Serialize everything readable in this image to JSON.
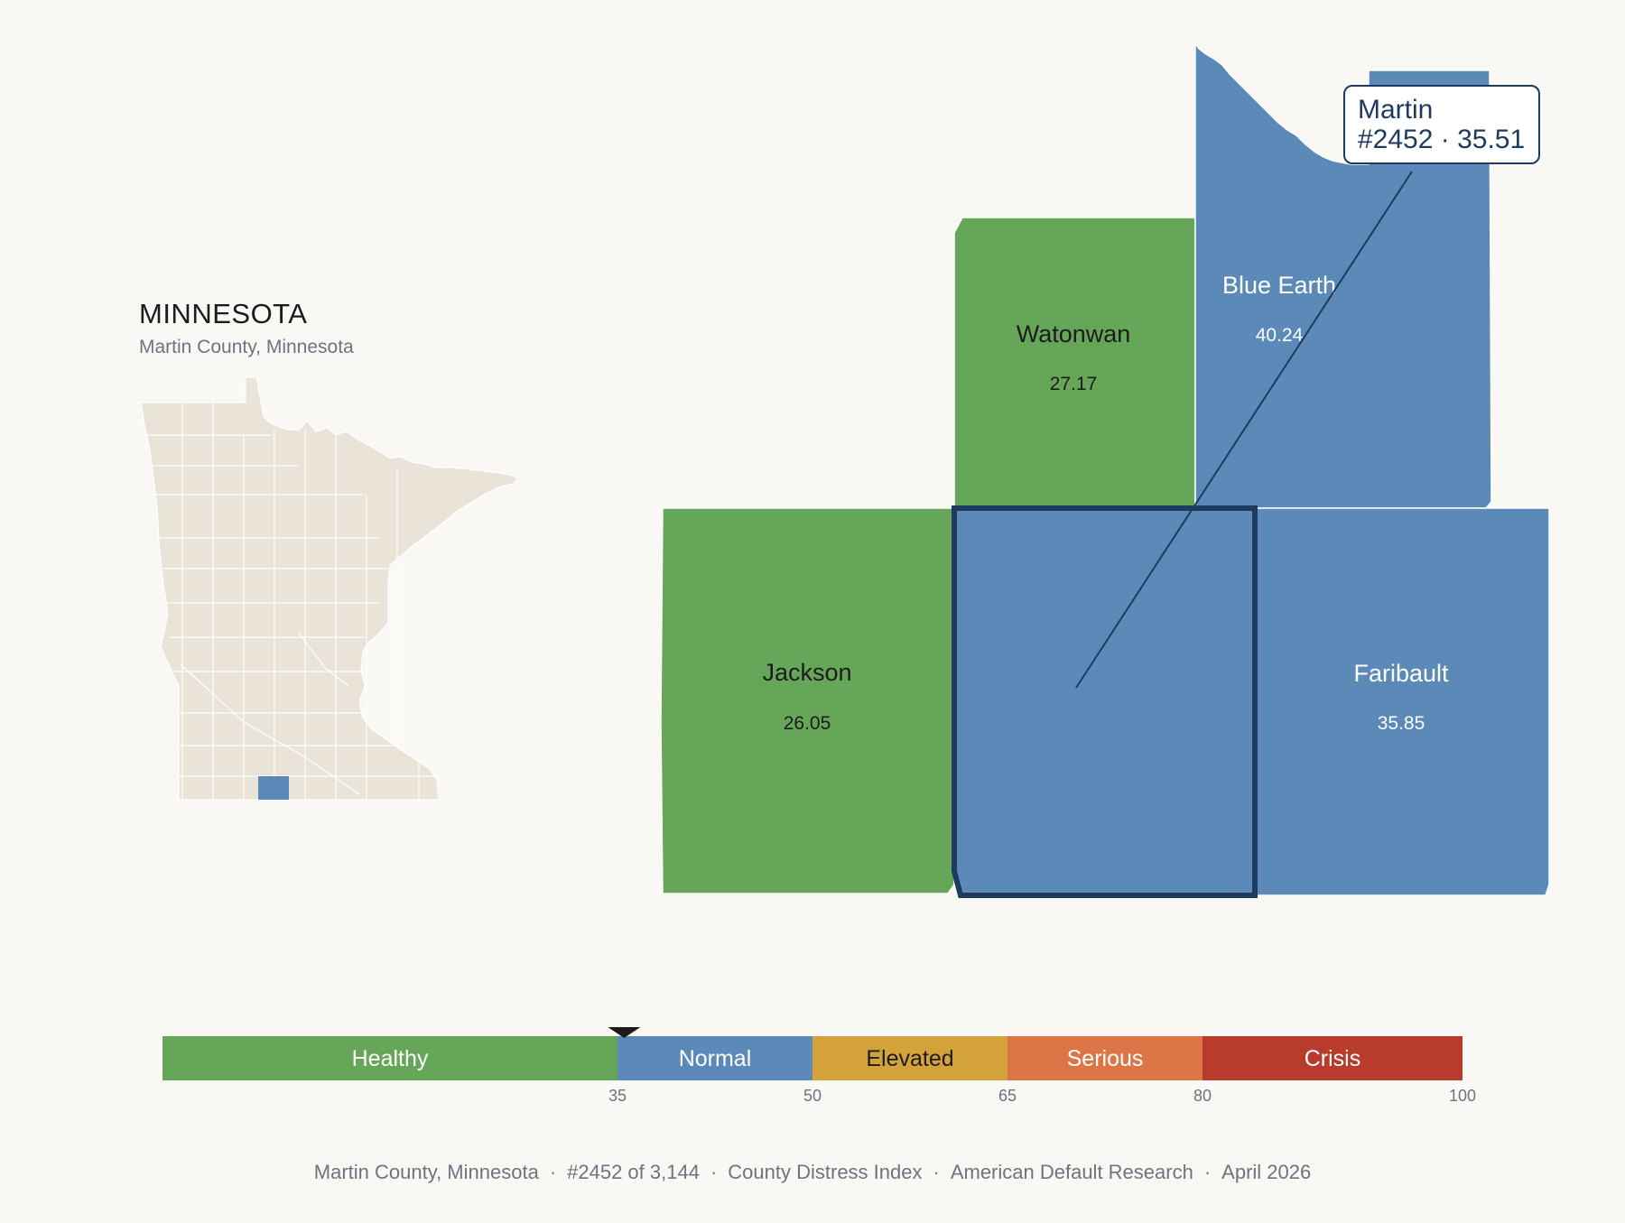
{
  "inset": {
    "state_title": "MINNESOTA",
    "subtitle": "Martin County, Minnesota"
  },
  "colors": {
    "background": "#f9f8f5",
    "state_fill": "#e9e3d8",
    "highlight": "#5b89b8",
    "healthy": "#66a659",
    "normal": "#5b89b8",
    "elevated": "#d4a23a",
    "serious": "#dd7647",
    "crisis": "#b83b2c",
    "outline": "#1e3a5f"
  },
  "counties": [
    {
      "name": "Watonwan",
      "value": "27.17",
      "category": "healthy"
    },
    {
      "name": "Blue Earth",
      "value": "40.24",
      "category": "normal"
    },
    {
      "name": "Jackson",
      "value": "26.05",
      "category": "healthy"
    },
    {
      "name": "Martin",
      "value": "35.51",
      "category": "normal",
      "selected": true
    },
    {
      "name": "Faribault",
      "value": "35.85",
      "category": "normal"
    }
  ],
  "tooltip": {
    "name": "Martin",
    "detail": "#2452 · 35.51"
  },
  "scale": {
    "bands": [
      {
        "label": "Healthy",
        "from": 0,
        "to": 35,
        "color": "#66a659",
        "text_color": "#ffffff"
      },
      {
        "label": "Normal",
        "from": 35,
        "to": 50,
        "color": "#5b89b8",
        "text_color": "#ffffff"
      },
      {
        "label": "Elevated",
        "from": 50,
        "to": 65,
        "color": "#d4a23a",
        "text_color": "#1c1c1c"
      },
      {
        "label": "Serious",
        "from": 65,
        "to": 80,
        "color": "#dd7647",
        "text_color": "#ffffff"
      },
      {
        "label": "Crisis",
        "from": 80,
        "to": 100,
        "color": "#b83b2c",
        "text_color": "#ffffff"
      }
    ],
    "ticks": [
      "35",
      "50",
      "65",
      "80",
      "100"
    ],
    "marker_value": 35.51
  },
  "footer": {
    "county": "Martin County, Minnesota",
    "rank": "#2452 of 3,144",
    "index": "County Distress Index",
    "source": "American Default Research",
    "date": "April 2026"
  }
}
